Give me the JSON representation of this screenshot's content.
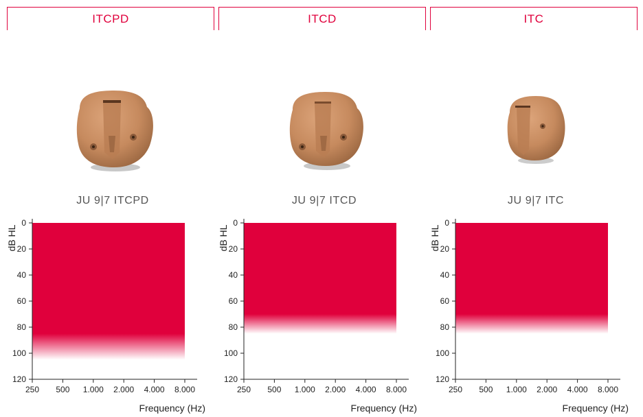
{
  "colors": {
    "accent": "#e0003c",
    "device_skin": "#c68a5e",
    "device_dark": "#8a5a3a"
  },
  "products": [
    {
      "title": "ITCPD",
      "model": "JU 9|7 ITCPD",
      "image": "itcpd-device-image"
    },
    {
      "title": "ITCD",
      "model": "JU 9|7 ITCD",
      "image": "itcd-device-image"
    },
    {
      "title": "ITC",
      "model": "JU 9|7 ITC",
      "image": "itc-device-image"
    }
  ],
  "chart_data": [
    {
      "type": "area",
      "xlabel": "Frequency (Hz)",
      "ylabel": "dB HL",
      "x_ticks": [
        "250",
        "500",
        "1.000",
        "2.000",
        "4.000",
        "8.000"
      ],
      "y_ticks": [
        0,
        20,
        40,
        60,
        80,
        100,
        120
      ],
      "ylim": [
        0,
        120
      ],
      "x_scale": "log",
      "fitting_range": {
        "x_from": 250,
        "x_to": 8000,
        "y_top": 0,
        "y_solid_bottom": 85,
        "y_fade_bottom": 105
      }
    },
    {
      "type": "area",
      "xlabel": "Frequency (Hz)",
      "ylabel": "dB HL",
      "x_ticks": [
        "250",
        "500",
        "1.000",
        "2.000",
        "4.000",
        "8.000"
      ],
      "y_ticks": [
        0,
        20,
        40,
        60,
        80,
        100,
        120
      ],
      "ylim": [
        0,
        120
      ],
      "x_scale": "log",
      "fitting_range": {
        "x_from": 250,
        "x_to": 8000,
        "y_top": 0,
        "y_solid_bottom": 70,
        "y_fade_bottom": 85
      }
    },
    {
      "type": "area",
      "xlabel": "Frequency (Hz)",
      "ylabel": "dB HL",
      "x_ticks": [
        "250",
        "500",
        "1.000",
        "2.000",
        "4.000",
        "8.000"
      ],
      "y_ticks": [
        0,
        20,
        40,
        60,
        80,
        100,
        120
      ],
      "ylim": [
        0,
        120
      ],
      "x_scale": "log",
      "fitting_range": {
        "x_from": 250,
        "x_to": 8000,
        "y_top": 0,
        "y_solid_bottom": 70,
        "y_fade_bottom": 85
      }
    }
  ]
}
